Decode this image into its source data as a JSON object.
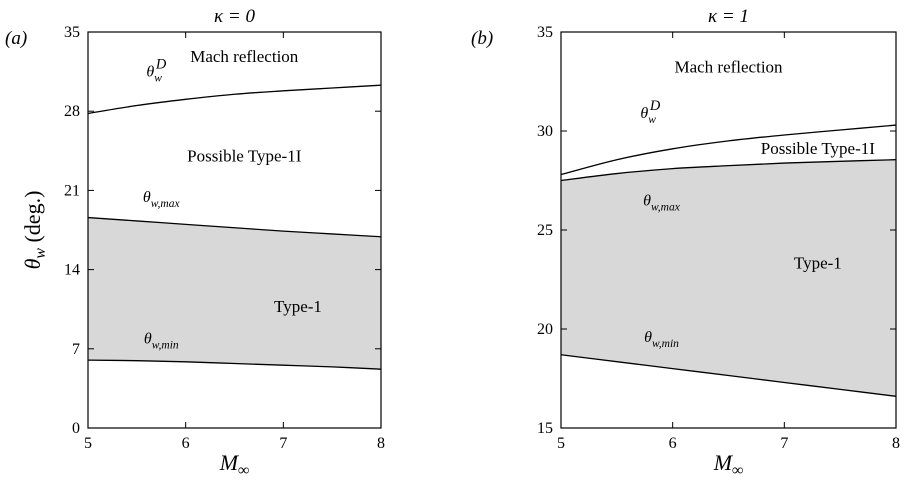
{
  "chart_data": [
    {
      "type": "area",
      "panel_label": "(a)",
      "title": "κ = 0",
      "xlabel": "M∞",
      "ylabel": "θw (deg.)",
      "xlim": [
        5,
        8
      ],
      "ylim": [
        0,
        35
      ],
      "xticks": [
        5,
        6,
        7,
        8
      ],
      "yticks": [
        0,
        7,
        14,
        21,
        28,
        35
      ],
      "x": [
        5,
        5.5,
        6,
        6.5,
        7,
        7.5,
        8
      ],
      "series": [
        {
          "name": "θwD",
          "values": [
            27.8,
            28.5,
            29.05,
            29.5,
            29.8,
            30.05,
            30.3
          ]
        },
        {
          "name": "θw,max",
          "values": [
            18.6,
            18.3,
            18.0,
            17.7,
            17.4,
            17.15,
            16.9
          ]
        },
        {
          "name": "θw,min",
          "values": [
            6.0,
            5.95,
            5.85,
            5.7,
            5.55,
            5.4,
            5.2
          ]
        }
      ],
      "shaded_region": {
        "between": [
          "θw,min",
          "θw,max"
        ],
        "color": "#d8d8d8"
      },
      "annotations": [
        {
          "text": "Mach reflection",
          "x": 6.6,
          "y": 32.8
        },
        {
          "text": "Possible Type-1I",
          "x": 6.6,
          "y": 24.0
        },
        {
          "text": "Type-1",
          "x": 7.15,
          "y": 10.7
        },
        {
          "text": "θwD",
          "x": 5.7,
          "y": 31.5
        },
        {
          "text": "θw,max",
          "x": 5.75,
          "y": 20.4
        },
        {
          "text": "θw,min",
          "x": 5.75,
          "y": 7.9
        }
      ]
    },
    {
      "type": "area",
      "panel_label": "(b)",
      "title": "κ = 1",
      "xlabel": "M∞",
      "ylabel": "",
      "xlim": [
        5,
        8
      ],
      "ylim": [
        15,
        35
      ],
      "xticks": [
        5,
        6,
        7,
        8
      ],
      "yticks": [
        15,
        20,
        25,
        30,
        35
      ],
      "x": [
        5,
        5.5,
        6,
        6.5,
        7,
        7.5,
        8
      ],
      "series": [
        {
          "name": "θwD",
          "values": [
            27.8,
            28.55,
            29.1,
            29.5,
            29.8,
            30.05,
            30.3
          ]
        },
        {
          "name": "θw,max",
          "values": [
            27.5,
            27.85,
            28.1,
            28.25,
            28.38,
            28.47,
            28.55
          ]
        },
        {
          "name": "θw,min",
          "values": [
            18.7,
            18.35,
            18.0,
            17.65,
            17.3,
            16.95,
            16.6
          ]
        }
      ],
      "shaded_region": {
        "between": [
          "θw,min",
          "θw,max"
        ],
        "color": "#d8d8d8"
      },
      "annotations": [
        {
          "text": "Mach reflection",
          "x": 6.5,
          "y": 33.2
        },
        {
          "text": "Possible Type-1I",
          "x": 7.3,
          "y": 29.1
        },
        {
          "text": "Type-1",
          "x": 7.3,
          "y": 23.3
        },
        {
          "text": "θwD",
          "x": 5.8,
          "y": 30.9
        },
        {
          "text": "θw,max",
          "x": 5.9,
          "y": 26.5
        },
        {
          "text": "θw,min",
          "x": 5.9,
          "y": 19.6
        }
      ]
    }
  ]
}
